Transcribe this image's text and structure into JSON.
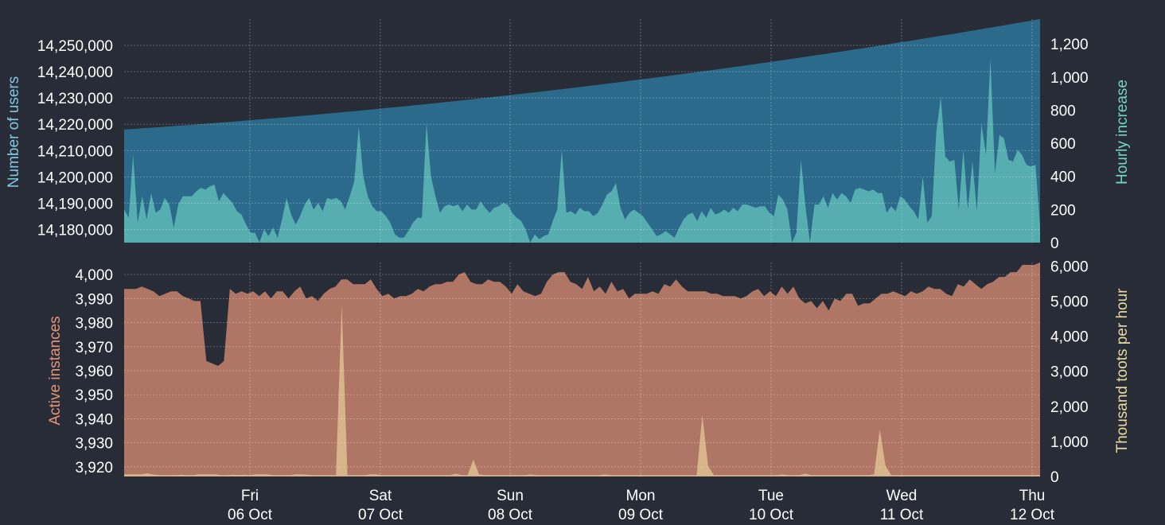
{
  "colors": {
    "background": "#282c37",
    "users_area": "#2b6a8b",
    "hourly_area": "#56aeb1",
    "instances_area": "#b07665",
    "toots_area": "#d8b48a",
    "users_title": "#7fc6e0",
    "hourly_title": "#74d4c8",
    "instances_title": "#e6937a",
    "toots_title": "#ead9a0"
  },
  "chart_data": [
    {
      "type": "area",
      "ylabel": "Number of users",
      "y2label": "Hourly increase",
      "ylim": [
        14175000,
        14260000
      ],
      "y_ticks": [
        "14,180,000",
        "14,190,000",
        "14,200,000",
        "14,210,000",
        "14,220,000",
        "14,230,000",
        "14,240,000",
        "14,250,000"
      ],
      "y2lim": [
        0,
        1350
      ],
      "y2_ticks": [
        "0",
        "200",
        "400",
        "600",
        "800",
        "1,000",
        "1,200"
      ],
      "grid": true,
      "series": [
        {
          "axis": "left",
          "start": 14218000,
          "end": 14260000
        },
        {
          "axis": "right",
          "values": [
            200,
            150,
            530,
            120,
            280,
            140,
            300,
            180,
            200,
            270,
            230,
            90,
            230,
            280,
            280,
            280,
            310,
            330,
            320,
            340,
            350,
            250,
            300,
            270,
            240,
            190,
            170,
            110,
            60,
            60,
            0,
            80,
            40,
            90,
            30,
            140,
            270,
            170,
            110,
            160,
            230,
            270,
            200,
            240,
            190,
            270,
            260,
            270,
            250,
            200,
            280,
            370,
            700,
            400,
            280,
            220,
            190,
            190,
            160,
            120,
            50,
            30,
            30,
            70,
            120,
            150,
            150,
            720,
            400,
            280,
            180,
            220,
            230,
            220,
            230,
            190,
            230,
            200,
            200,
            250,
            210,
            180,
            210,
            220,
            240,
            230,
            180,
            150,
            130,
            80,
            0,
            50,
            20,
            40,
            50,
            130,
            200,
            560,
            180,
            190,
            170,
            210,
            190,
            190,
            160,
            180,
            230,
            290,
            310,
            360,
            210,
            140,
            180,
            200,
            180,
            160,
            120,
            80,
            40,
            50,
            70,
            50,
            30,
            90,
            140,
            170,
            180,
            130,
            190,
            150,
            210,
            170,
            180,
            200,
            180,
            210,
            190,
            230,
            230,
            220,
            210,
            220,
            220,
            180,
            160,
            290,
            260,
            200,
            0,
            60,
            500,
            220,
            0,
            230,
            230,
            280,
            210,
            300,
            260,
            300,
            280,
            240,
            320,
            330,
            320,
            310,
            320,
            300,
            300,
            180,
            220,
            190,
            280,
            260,
            220,
            190,
            140,
            400,
            120,
            160,
            670,
            880,
            520,
            490,
            500,
            200,
            560,
            200,
            490,
            190,
            720,
            530,
            1110,
            420,
            650,
            630,
            500,
            490,
            560,
            530,
            470,
            460,
            470,
            100
          ]
        }
      ]
    },
    {
      "type": "area",
      "ylabel": "Active instances",
      "y2label": "Thousand toots per hour",
      "ylim": [
        3916,
        4005
      ],
      "y_ticks": [
        "3,920",
        "3,930",
        "3,940",
        "3,950",
        "3,960",
        "3,970",
        "3,980",
        "3,990",
        "4,000"
      ],
      "y2lim": [
        0,
        6100
      ],
      "y2_ticks": [
        "0",
        "1,000",
        "2,000",
        "3,000",
        "4,000",
        "5,000",
        "6,000"
      ],
      "x_ticks": [
        {
          "day": "Fri",
          "date": "06 Oct"
        },
        {
          "day": "Sat",
          "date": "07 Oct"
        },
        {
          "day": "Sun",
          "date": "08 Oct"
        },
        {
          "day": "Mon",
          "date": "09 Oct"
        },
        {
          "day": "Tue",
          "date": "10 Oct"
        },
        {
          "day": "Wed",
          "date": "11 Oct"
        },
        {
          "day": "Thu",
          "date": "12 Oct"
        }
      ],
      "grid": true,
      "series": [
        {
          "axis": "left",
          "values": [
            3994,
            3994,
            3994,
            3995,
            3994,
            3993,
            3991,
            3992,
            3993,
            3993,
            3991,
            3990,
            3989,
            3989,
            3964,
            3963,
            3962,
            3964,
            3994,
            3992,
            3993,
            3992,
            3993,
            3991,
            3993,
            3990,
            3993,
            3993,
            3990,
            3993,
            3995,
            3990,
            3991,
            3989,
            3992,
            3994,
            3995,
            3998,
            3998,
            3996,
            3996,
            3996,
            3998,
            3994,
            3991,
            3992,
            3990,
            3991,
            3991,
            3992,
            3994,
            3993,
            3995,
            3996,
            3996,
            3997,
            3997,
            4000,
            4001,
            3997,
            3996,
            3996,
            3998,
            3997,
            3997,
            3995,
            3992,
            3996,
            3993,
            3992,
            3991,
            3992,
            3997,
            4000,
            4001,
            4001,
            3997,
            3996,
            3994,
            3999,
            3993,
            3995,
            3992,
            3997,
            3993,
            3994,
            3990,
            3992,
            3992,
            3992,
            3993,
            3992,
            3996,
            3995,
            3998,
            3995,
            3993,
            3993,
            3993,
            3993,
            3992,
            3992,
            3991,
            3991,
            3991,
            3990,
            3991,
            3993,
            3994,
            3991,
            3993,
            3991,
            3995,
            3992,
            3995,
            3990,
            3988,
            3989,
            3986,
            3989,
            3985,
            3990,
            3989,
            3992,
            3992,
            3987,
            3988,
            3988,
            3990,
            3992,
            3992,
            3993,
            3992,
            3991,
            3993,
            3992,
            3993,
            3995,
            3994,
            3994,
            3992,
            3991,
            3996,
            3995,
            3998,
            3996,
            3994,
            3996,
            3997,
            3999,
            3999,
            4001,
            4001,
            4004,
            4004,
            4004,
            4007
          ]
        },
        {
          "axis": "right",
          "values": [
            60,
            60,
            60,
            60,
            90,
            60,
            40,
            40,
            40,
            40,
            50,
            40,
            40,
            60,
            60,
            60,
            60,
            40,
            40,
            50,
            40,
            50,
            40,
            60,
            60,
            60,
            40,
            40,
            40,
            40,
            60,
            60,
            50,
            40,
            40,
            40,
            40,
            40,
            4900,
            40,
            40,
            40,
            40,
            60,
            60,
            40,
            40,
            40,
            40,
            40,
            40,
            40,
            40,
            40,
            40,
            40,
            40,
            40,
            80,
            40,
            40,
            480,
            60,
            40,
            40,
            40,
            40,
            40,
            40,
            40,
            40,
            60,
            40,
            40,
            40,
            40,
            40,
            40,
            40,
            40,
            40,
            40,
            40,
            40,
            60,
            40,
            40,
            40,
            40,
            40,
            40,
            40,
            40,
            40,
            40,
            40,
            40,
            40,
            40,
            40,
            40,
            1750,
            300,
            40,
            40,
            40,
            40,
            40,
            40,
            40,
            40,
            40,
            40,
            40,
            40,
            60,
            40,
            40,
            40,
            80,
            40,
            40,
            40,
            40,
            40,
            40,
            40,
            40,
            40,
            40,
            40,
            60,
            1340,
            300,
            40,
            40,
            40,
            40,
            40,
            40,
            40,
            40,
            40,
            40,
            40,
            40,
            40,
            40,
            40,
            40,
            40,
            40,
            40,
            40,
            40,
            40,
            40,
            40,
            40,
            40,
            40
          ]
        }
      ]
    }
  ]
}
